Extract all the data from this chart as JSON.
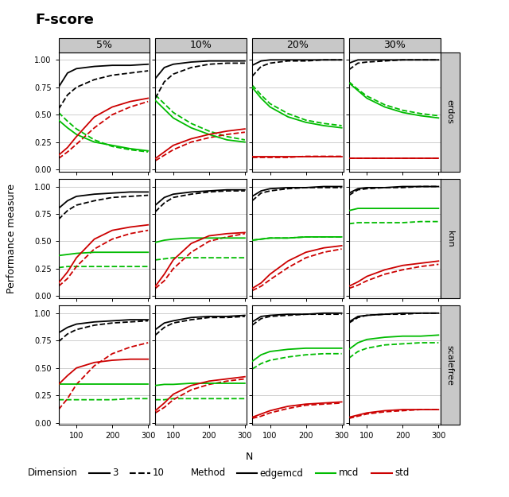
{
  "title": "F-score",
  "ylabel": "Performance measure",
  "xlabel": "N",
  "col_labels": [
    "5%",
    "10%",
    "20%",
    "30%"
  ],
  "row_labels": [
    "erdos",
    "knn",
    "scalefree"
  ],
  "x_values": [
    50,
    75,
    100,
    150,
    200,
    250,
    300
  ],
  "x_ticks": [
    100,
    200,
    300
  ],
  "y_ticks": [
    0.0,
    0.25,
    0.5,
    0.75,
    1.0
  ],
  "colors": {
    "edgemcd": "#000000",
    "mcd": "#00bb00",
    "std": "#cc0000"
  },
  "header_color": "#c8c8c8",
  "data": {
    "erdos": {
      "5%": {
        "edgemcd_d3": [
          0.75,
          0.88,
          0.92,
          0.94,
          0.95,
          0.95,
          0.96
        ],
        "edgemcd_d10": [
          0.55,
          0.68,
          0.75,
          0.82,
          0.86,
          0.88,
          0.9
        ],
        "mcd_d3": [
          0.45,
          0.38,
          0.32,
          0.25,
          0.22,
          0.19,
          0.17
        ],
        "mcd_d10": [
          0.52,
          0.44,
          0.37,
          0.27,
          0.21,
          0.18,
          0.16
        ],
        "std_d3": [
          0.13,
          0.2,
          0.3,
          0.48,
          0.57,
          0.62,
          0.65
        ],
        "std_d10": [
          0.1,
          0.16,
          0.23,
          0.38,
          0.5,
          0.57,
          0.62
        ]
      },
      "10%": {
        "edgemcd_d3": [
          0.83,
          0.93,
          0.96,
          0.98,
          0.99,
          0.99,
          0.99
        ],
        "edgemcd_d10": [
          0.65,
          0.8,
          0.87,
          0.93,
          0.96,
          0.97,
          0.97
        ],
        "mcd_d3": [
          0.63,
          0.55,
          0.47,
          0.38,
          0.32,
          0.27,
          0.25
        ],
        "mcd_d10": [
          0.68,
          0.6,
          0.52,
          0.42,
          0.35,
          0.3,
          0.27
        ],
        "std_d3": [
          0.1,
          0.16,
          0.22,
          0.28,
          0.32,
          0.35,
          0.37
        ],
        "std_d10": [
          0.08,
          0.13,
          0.18,
          0.25,
          0.29,
          0.32,
          0.34
        ]
      },
      "20%": {
        "edgemcd_d3": [
          0.95,
          0.99,
          1.0,
          1.0,
          1.0,
          1.0,
          1.0
        ],
        "edgemcd_d10": [
          0.85,
          0.94,
          0.97,
          0.99,
          0.99,
          1.0,
          1.0
        ],
        "mcd_d3": [
          0.75,
          0.65,
          0.57,
          0.48,
          0.43,
          0.4,
          0.38
        ],
        "mcd_d10": [
          0.77,
          0.68,
          0.6,
          0.51,
          0.45,
          0.42,
          0.4
        ],
        "std_d3": [
          0.12,
          0.12,
          0.12,
          0.12,
          0.12,
          0.12,
          0.12
        ],
        "std_d10": [
          0.11,
          0.11,
          0.11,
          0.11,
          0.12,
          0.12,
          0.12
        ]
      },
      "30%": {
        "edgemcd_d3": [
          0.97,
          1.0,
          1.0,
          1.0,
          1.0,
          1.0,
          1.0
        ],
        "edgemcd_d10": [
          0.91,
          0.97,
          0.98,
          0.99,
          1.0,
          1.0,
          1.0
        ],
        "mcd_d3": [
          0.79,
          0.72,
          0.65,
          0.57,
          0.52,
          0.49,
          0.47
        ],
        "mcd_d10": [
          0.8,
          0.73,
          0.67,
          0.59,
          0.54,
          0.51,
          0.49
        ],
        "std_d3": [
          0.1,
          0.1,
          0.1,
          0.1,
          0.1,
          0.1,
          0.1
        ],
        "std_d10": [
          0.1,
          0.1,
          0.1,
          0.1,
          0.1,
          0.1,
          0.1
        ]
      }
    },
    "knn": {
      "5%": {
        "edgemcd_d3": [
          0.8,
          0.87,
          0.91,
          0.93,
          0.94,
          0.95,
          0.95
        ],
        "edgemcd_d10": [
          0.7,
          0.78,
          0.83,
          0.87,
          0.9,
          0.91,
          0.92
        ],
        "mcd_d3": [
          0.37,
          0.38,
          0.39,
          0.4,
          0.4,
          0.4,
          0.4
        ],
        "mcd_d10": [
          0.26,
          0.27,
          0.27,
          0.27,
          0.27,
          0.27,
          0.27
        ],
        "std_d3": [
          0.12,
          0.22,
          0.35,
          0.52,
          0.6,
          0.63,
          0.65
        ],
        "std_d10": [
          0.09,
          0.16,
          0.27,
          0.43,
          0.52,
          0.57,
          0.6
        ]
      },
      "10%": {
        "edgemcd_d3": [
          0.83,
          0.9,
          0.93,
          0.95,
          0.96,
          0.97,
          0.97
        ],
        "edgemcd_d10": [
          0.77,
          0.85,
          0.9,
          0.93,
          0.95,
          0.96,
          0.96
        ],
        "mcd_d3": [
          0.49,
          0.51,
          0.52,
          0.53,
          0.53,
          0.53,
          0.53
        ],
        "mcd_d10": [
          0.33,
          0.34,
          0.35,
          0.35,
          0.35,
          0.35,
          0.35
        ],
        "std_d3": [
          0.09,
          0.2,
          0.33,
          0.48,
          0.55,
          0.57,
          0.58
        ],
        "std_d10": [
          0.07,
          0.14,
          0.25,
          0.4,
          0.5,
          0.54,
          0.57
        ]
      },
      "20%": {
        "edgemcd_d3": [
          0.91,
          0.96,
          0.98,
          0.99,
          0.99,
          1.0,
          1.0
        ],
        "edgemcd_d10": [
          0.87,
          0.94,
          0.96,
          0.98,
          0.99,
          0.99,
          0.99
        ],
        "mcd_d3": [
          0.51,
          0.52,
          0.53,
          0.53,
          0.54,
          0.54,
          0.54
        ],
        "mcd_d10": [
          0.51,
          0.52,
          0.53,
          0.53,
          0.54,
          0.54,
          0.54
        ],
        "std_d3": [
          0.07,
          0.12,
          0.2,
          0.32,
          0.4,
          0.44,
          0.46
        ],
        "std_d10": [
          0.05,
          0.09,
          0.15,
          0.26,
          0.35,
          0.4,
          0.43
        ]
      },
      "30%": {
        "edgemcd_d3": [
          0.94,
          0.98,
          0.99,
          0.99,
          1.0,
          1.0,
          1.0
        ],
        "edgemcd_d10": [
          0.92,
          0.97,
          0.98,
          0.99,
          0.99,
          1.0,
          1.0
        ],
        "mcd_d3": [
          0.78,
          0.8,
          0.8,
          0.8,
          0.8,
          0.8,
          0.8
        ],
        "mcd_d10": [
          0.66,
          0.67,
          0.67,
          0.67,
          0.67,
          0.68,
          0.68
        ],
        "std_d3": [
          0.09,
          0.13,
          0.18,
          0.24,
          0.28,
          0.3,
          0.32
        ],
        "std_d10": [
          0.07,
          0.1,
          0.14,
          0.2,
          0.24,
          0.27,
          0.29
        ]
      }
    },
    "scalefree": {
      "5%": {
        "edgemcd_d3": [
          0.82,
          0.87,
          0.9,
          0.92,
          0.93,
          0.94,
          0.94
        ],
        "edgemcd_d10": [
          0.74,
          0.81,
          0.85,
          0.89,
          0.91,
          0.92,
          0.93
        ],
        "mcd_d3": [
          0.35,
          0.35,
          0.35,
          0.35,
          0.35,
          0.35,
          0.35
        ],
        "mcd_d10": [
          0.21,
          0.21,
          0.21,
          0.21,
          0.21,
          0.22,
          0.22
        ],
        "std_d3": [
          0.35,
          0.43,
          0.5,
          0.55,
          0.57,
          0.58,
          0.58
        ],
        "std_d10": [
          0.12,
          0.22,
          0.35,
          0.52,
          0.63,
          0.69,
          0.73
        ]
      },
      "10%": {
        "edgemcd_d3": [
          0.85,
          0.91,
          0.93,
          0.96,
          0.97,
          0.97,
          0.98
        ],
        "edgemcd_d10": [
          0.8,
          0.87,
          0.91,
          0.94,
          0.96,
          0.96,
          0.97
        ],
        "mcd_d3": [
          0.34,
          0.35,
          0.35,
          0.36,
          0.36,
          0.36,
          0.36
        ],
        "mcd_d10": [
          0.21,
          0.21,
          0.22,
          0.22,
          0.22,
          0.22,
          0.22
        ],
        "std_d3": [
          0.11,
          0.18,
          0.26,
          0.34,
          0.38,
          0.4,
          0.42
        ],
        "std_d10": [
          0.09,
          0.14,
          0.21,
          0.3,
          0.35,
          0.38,
          0.4
        ]
      },
      "20%": {
        "edgemcd_d3": [
          0.92,
          0.97,
          0.98,
          0.99,
          0.99,
          1.0,
          1.0
        ],
        "edgemcd_d10": [
          0.89,
          0.95,
          0.97,
          0.98,
          0.99,
          0.99,
          0.99
        ],
        "mcd_d3": [
          0.56,
          0.62,
          0.65,
          0.67,
          0.68,
          0.68,
          0.68
        ],
        "mcd_d10": [
          0.49,
          0.54,
          0.57,
          0.6,
          0.62,
          0.63,
          0.63
        ],
        "std_d3": [
          0.05,
          0.08,
          0.11,
          0.15,
          0.17,
          0.18,
          0.19
        ],
        "std_d10": [
          0.04,
          0.06,
          0.09,
          0.13,
          0.16,
          0.17,
          0.18
        ]
      },
      "30%": {
        "edgemcd_d3": [
          0.92,
          0.97,
          0.98,
          0.99,
          1.0,
          1.0,
          1.0
        ],
        "edgemcd_d10": [
          0.91,
          0.96,
          0.98,
          0.99,
          0.99,
          1.0,
          1.0
        ],
        "mcd_d3": [
          0.67,
          0.73,
          0.76,
          0.78,
          0.79,
          0.79,
          0.8
        ],
        "mcd_d10": [
          0.59,
          0.65,
          0.68,
          0.71,
          0.72,
          0.73,
          0.73
        ],
        "std_d3": [
          0.05,
          0.07,
          0.09,
          0.11,
          0.12,
          0.12,
          0.12
        ],
        "std_d10": [
          0.04,
          0.06,
          0.08,
          0.1,
          0.11,
          0.12,
          0.12
        ]
      }
    }
  }
}
